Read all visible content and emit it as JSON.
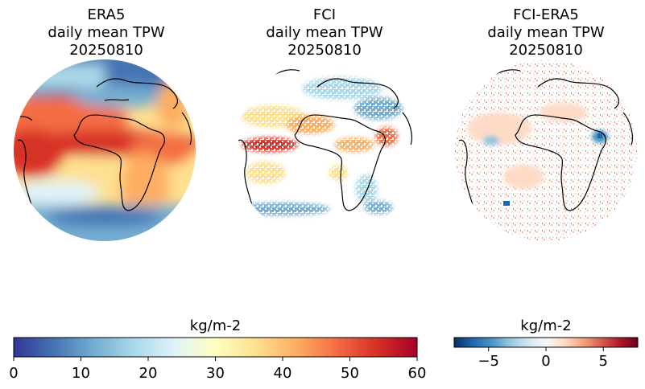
{
  "panels": [
    {
      "id": "era5",
      "title": [
        "ERA5",
        "daily mean TPW",
        "20250810"
      ]
    },
    {
      "id": "fci",
      "title": [
        "FCI",
        "daily mean TPW",
        "20250810"
      ]
    },
    {
      "id": "diff",
      "title": [
        "FCI-ERA5",
        "daily mean TPW",
        "20250810"
      ]
    }
  ],
  "colorbars": [
    {
      "id": "tpw",
      "label": "kg/m-2",
      "range": [
        0,
        60
      ],
      "ticks": [
        "0",
        "10",
        "20",
        "30",
        "40",
        "50",
        "60"
      ],
      "tick_values": [
        0,
        10,
        20,
        30,
        40,
        50,
        60
      ],
      "colormap": "RdYlBu_r"
    },
    {
      "id": "diff",
      "label": "kg/m-2",
      "range": [
        -8,
        8
      ],
      "ticks": [
        "−5",
        "0",
        "5"
      ],
      "tick_values": [
        -5,
        0,
        5
      ],
      "colormap": "RdBu_r"
    }
  ],
  "colors": {
    "cmap_tpw": [
      "#313695",
      "#4575b4",
      "#74add1",
      "#abd9e9",
      "#e0f3f8",
      "#ffffbf",
      "#fee090",
      "#fdae61",
      "#f46d43",
      "#d73027",
      "#a50026"
    ],
    "cmap_diff": [
      "#053061",
      "#2166ac",
      "#4393c3",
      "#92c5de",
      "#d1e5f0",
      "#f7f7f7",
      "#fddbc7",
      "#f4a582",
      "#d6604d",
      "#b2182b",
      "#67001f"
    ],
    "coastline": "#000000"
  }
}
